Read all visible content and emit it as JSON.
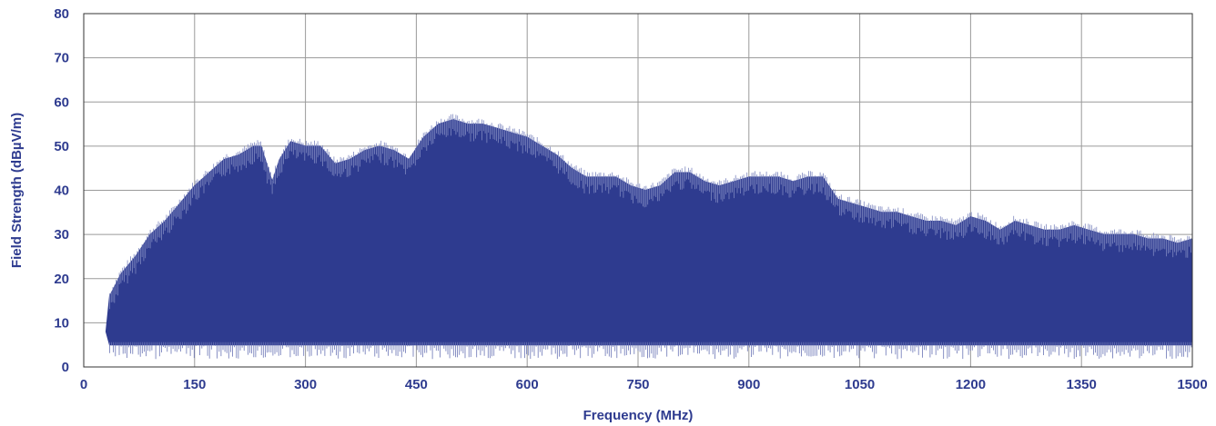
{
  "chart_data": {
    "type": "area",
    "title": "",
    "xlabel": "Frequency (MHz)",
    "ylabel": "Field Strength (dBµV/m)",
    "xlim": [
      0,
      1500
    ],
    "ylim": [
      0,
      80
    ],
    "xticks": [
      "0",
      "150",
      "300",
      "450",
      "600",
      "750",
      "900",
      "1050",
      "1200",
      "1350",
      "1500"
    ],
    "yticks": [
      "0",
      "10",
      "20",
      "30",
      "40",
      "50",
      "60",
      "70",
      "80"
    ],
    "grid": true,
    "fill_color": "#2e3b8f",
    "series": [
      {
        "x": [
          30,
          35,
          50,
          70,
          90,
          110,
          130,
          150,
          170,
          190,
          210,
          230,
          240,
          255,
          265,
          280,
          300,
          320,
          340,
          360,
          380,
          400,
          420,
          440,
          460,
          480,
          500,
          520,
          540,
          560,
          580,
          600,
          620,
          640,
          660,
          680,
          700,
          720,
          740,
          760,
          780,
          800,
          820,
          840,
          860,
          880,
          900,
          920,
          940,
          960,
          980,
          1000,
          1020,
          1040,
          1060,
          1080,
          1100,
          1120,
          1140,
          1160,
          1180,
          1200,
          1220,
          1240,
          1260,
          1280,
          1300,
          1320,
          1340,
          1360,
          1380,
          1400,
          1420,
          1440,
          1460,
          1480,
          1500
        ],
        "upper": [
          8,
          16,
          21,
          25,
          30,
          33,
          37,
          41,
          44,
          47,
          48,
          50,
          50,
          42,
          47,
          51,
          50,
          50,
          46,
          47,
          49,
          50,
          49,
          47,
          52,
          55,
          56,
          55,
          55,
          54,
          53,
          52,
          50,
          48,
          45,
          43,
          43,
          43,
          41,
          40,
          41,
          44,
          44,
          42,
          41,
          42,
          43,
          43,
          43,
          42,
          43,
          43,
          38,
          37,
          36,
          35,
          35,
          34,
          33,
          33,
          32,
          34,
          33,
          31,
          33,
          32,
          31,
          31,
          32,
          31,
          30,
          30,
          30,
          29,
          29,
          28,
          29
        ],
        "lower": [
          8,
          5,
          5,
          5,
          5,
          5,
          5,
          5,
          5,
          5,
          5,
          5,
          5,
          5,
          5,
          5,
          5,
          5,
          5,
          5,
          5,
          5,
          5,
          5,
          5,
          5,
          5,
          5,
          5,
          5,
          5,
          5,
          5,
          5,
          5,
          5,
          5,
          5,
          5,
          5,
          5,
          5,
          5,
          5,
          5,
          5,
          5,
          5,
          5,
          5,
          5,
          5,
          5,
          5,
          5,
          5,
          5,
          5,
          5,
          5,
          5,
          5,
          5,
          5,
          5,
          5,
          5,
          5,
          5,
          5,
          5,
          5,
          5,
          5,
          5,
          5,
          5
        ]
      }
    ]
  }
}
